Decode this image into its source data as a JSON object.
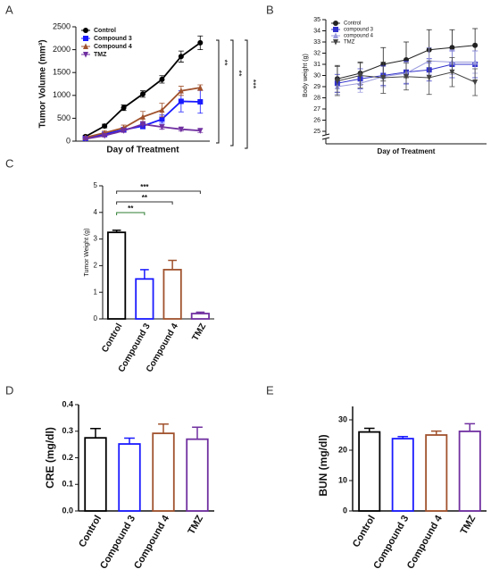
{
  "chart_data": [
    {
      "type": "line",
      "label": "A",
      "ylabel": "Tumor Volume (mm³)",
      "xlabel": "Day of Treatment",
      "ylim": [
        0,
        2500
      ],
      "yticks": [
        0,
        500,
        1000,
        1500,
        2000,
        2500
      ],
      "legend": "upper left",
      "series": [
        {
          "name": "Control",
          "color": "#000000",
          "marker": "circle",
          "values": [
            100,
            330,
            730,
            1030,
            1350,
            1850,
            2150
          ],
          "errors": [
            30,
            40,
            60,
            70,
            80,
            120,
            150
          ]
        },
        {
          "name": "Compound 3",
          "color": "#1a1aff",
          "marker": "square",
          "values": [
            60,
            150,
            250,
            330,
            480,
            870,
            860
          ],
          "errors": [
            20,
            30,
            50,
            60,
            90,
            230,
            250
          ]
        },
        {
          "name": "Compound 4",
          "color": "#a0522d",
          "marker": "triangle",
          "values": [
            80,
            180,
            290,
            530,
            680,
            1100,
            1170
          ],
          "errors": [
            20,
            40,
            60,
            120,
            150,
            100,
            60
          ]
        },
        {
          "name": "TMZ",
          "color": "#7030a0",
          "marker": "triangle-down",
          "values": [
            50,
            120,
            230,
            370,
            310,
            260,
            230
          ],
          "errors": [
            15,
            30,
            40,
            60,
            50,
            40,
            40
          ]
        }
      ],
      "annotations": [
        "**",
        "**",
        "***"
      ]
    },
    {
      "type": "line",
      "label": "B",
      "ylabel": "Body weight (g)",
      "xlabel": "Day of Treatment",
      "ylim": [
        25,
        35
      ],
      "yticks": [
        25,
        26,
        27,
        28,
        29,
        30,
        31,
        32,
        33,
        34,
        35
      ],
      "legend": "upper left",
      "series": [
        {
          "name": "Control",
          "color": "#222222",
          "marker": "circle",
          "values": [
            29.7,
            30.2,
            31,
            31.4,
            32.3,
            32.5,
            32.7
          ],
          "errors": [
            1.2,
            1.0,
            1.5,
            1.6,
            1.8,
            1.6,
            1.5
          ]
        },
        {
          "name": "compound 3",
          "color": "#3333cc",
          "marker": "square",
          "values": [
            29.3,
            29.7,
            30,
            30.3,
            30.5,
            31,
            31
          ],
          "errors": [
            0.8,
            0.9,
            0.9,
            1.0,
            1.0,
            1.2,
            1.2
          ]
        },
        {
          "name": "compound 4",
          "color": "#9999dd",
          "marker": "triangle",
          "values": [
            29,
            29.3,
            29.9,
            30.2,
            31.3,
            31.2,
            31.2
          ],
          "errors": [
            0.7,
            0.8,
            0.9,
            1.0,
            1.2,
            1.1,
            1.0
          ]
        },
        {
          "name": "TMZ",
          "color": "#444444",
          "marker": "triangle-down",
          "values": [
            29.5,
            30,
            29.8,
            29.9,
            29.8,
            30.3,
            29.4
          ],
          "errors": [
            1.3,
            1.1,
            1.4,
            1.2,
            1.5,
            1.3,
            1.2
          ]
        }
      ]
    },
    {
      "type": "bar",
      "label": "C",
      "ylabel": "Tumor Weight (g)",
      "categories": [
        "Control",
        "Compound 3",
        "Compound 4",
        "TMZ"
      ],
      "colors": [
        "#000000",
        "#1a1aff",
        "#a0522d",
        "#7030a0"
      ],
      "values": [
        3.25,
        1.5,
        1.85,
        0.2
      ],
      "errors": [
        0.08,
        0.35,
        0.35,
        0.05
      ],
      "ylim": [
        0,
        5
      ],
      "yticks": [
        0,
        1,
        2,
        3,
        4,
        5
      ],
      "annotations": [
        "**",
        "**",
        "***"
      ]
    },
    {
      "type": "bar",
      "label": "D",
      "ylabel": "CRE (mg/dl)",
      "categories": [
        "Control",
        "Compound 3",
        "Compound 4",
        "TMZ"
      ],
      "colors": [
        "#000000",
        "#1a1aff",
        "#a0522d",
        "#7030a0"
      ],
      "values": [
        0.275,
        0.252,
        0.292,
        0.27
      ],
      "errors": [
        0.035,
        0.022,
        0.035,
        0.045
      ],
      "ylim": [
        0,
        0.4
      ],
      "yticks": [
        {
          "value": 0,
          "label": "0.0"
        },
        0.1,
        0.2,
        0.3,
        0.4
      ]
    },
    {
      "type": "bar",
      "label": "E",
      "ylabel": "BUN (mg/dl)",
      "categories": [
        "Control",
        "Compound 3",
        "Compound 4",
        "TMZ"
      ],
      "colors": [
        "#000000",
        "#1a1aff",
        "#a0522d",
        "#7030a0"
      ],
      "values": [
        26,
        23.8,
        25,
        26.2
      ],
      "errors": [
        1.2,
        0.7,
        1.3,
        2.5
      ],
      "ylim": [
        0,
        30
      ],
      "yticks": [
        0,
        10,
        20,
        30
      ]
    }
  ]
}
